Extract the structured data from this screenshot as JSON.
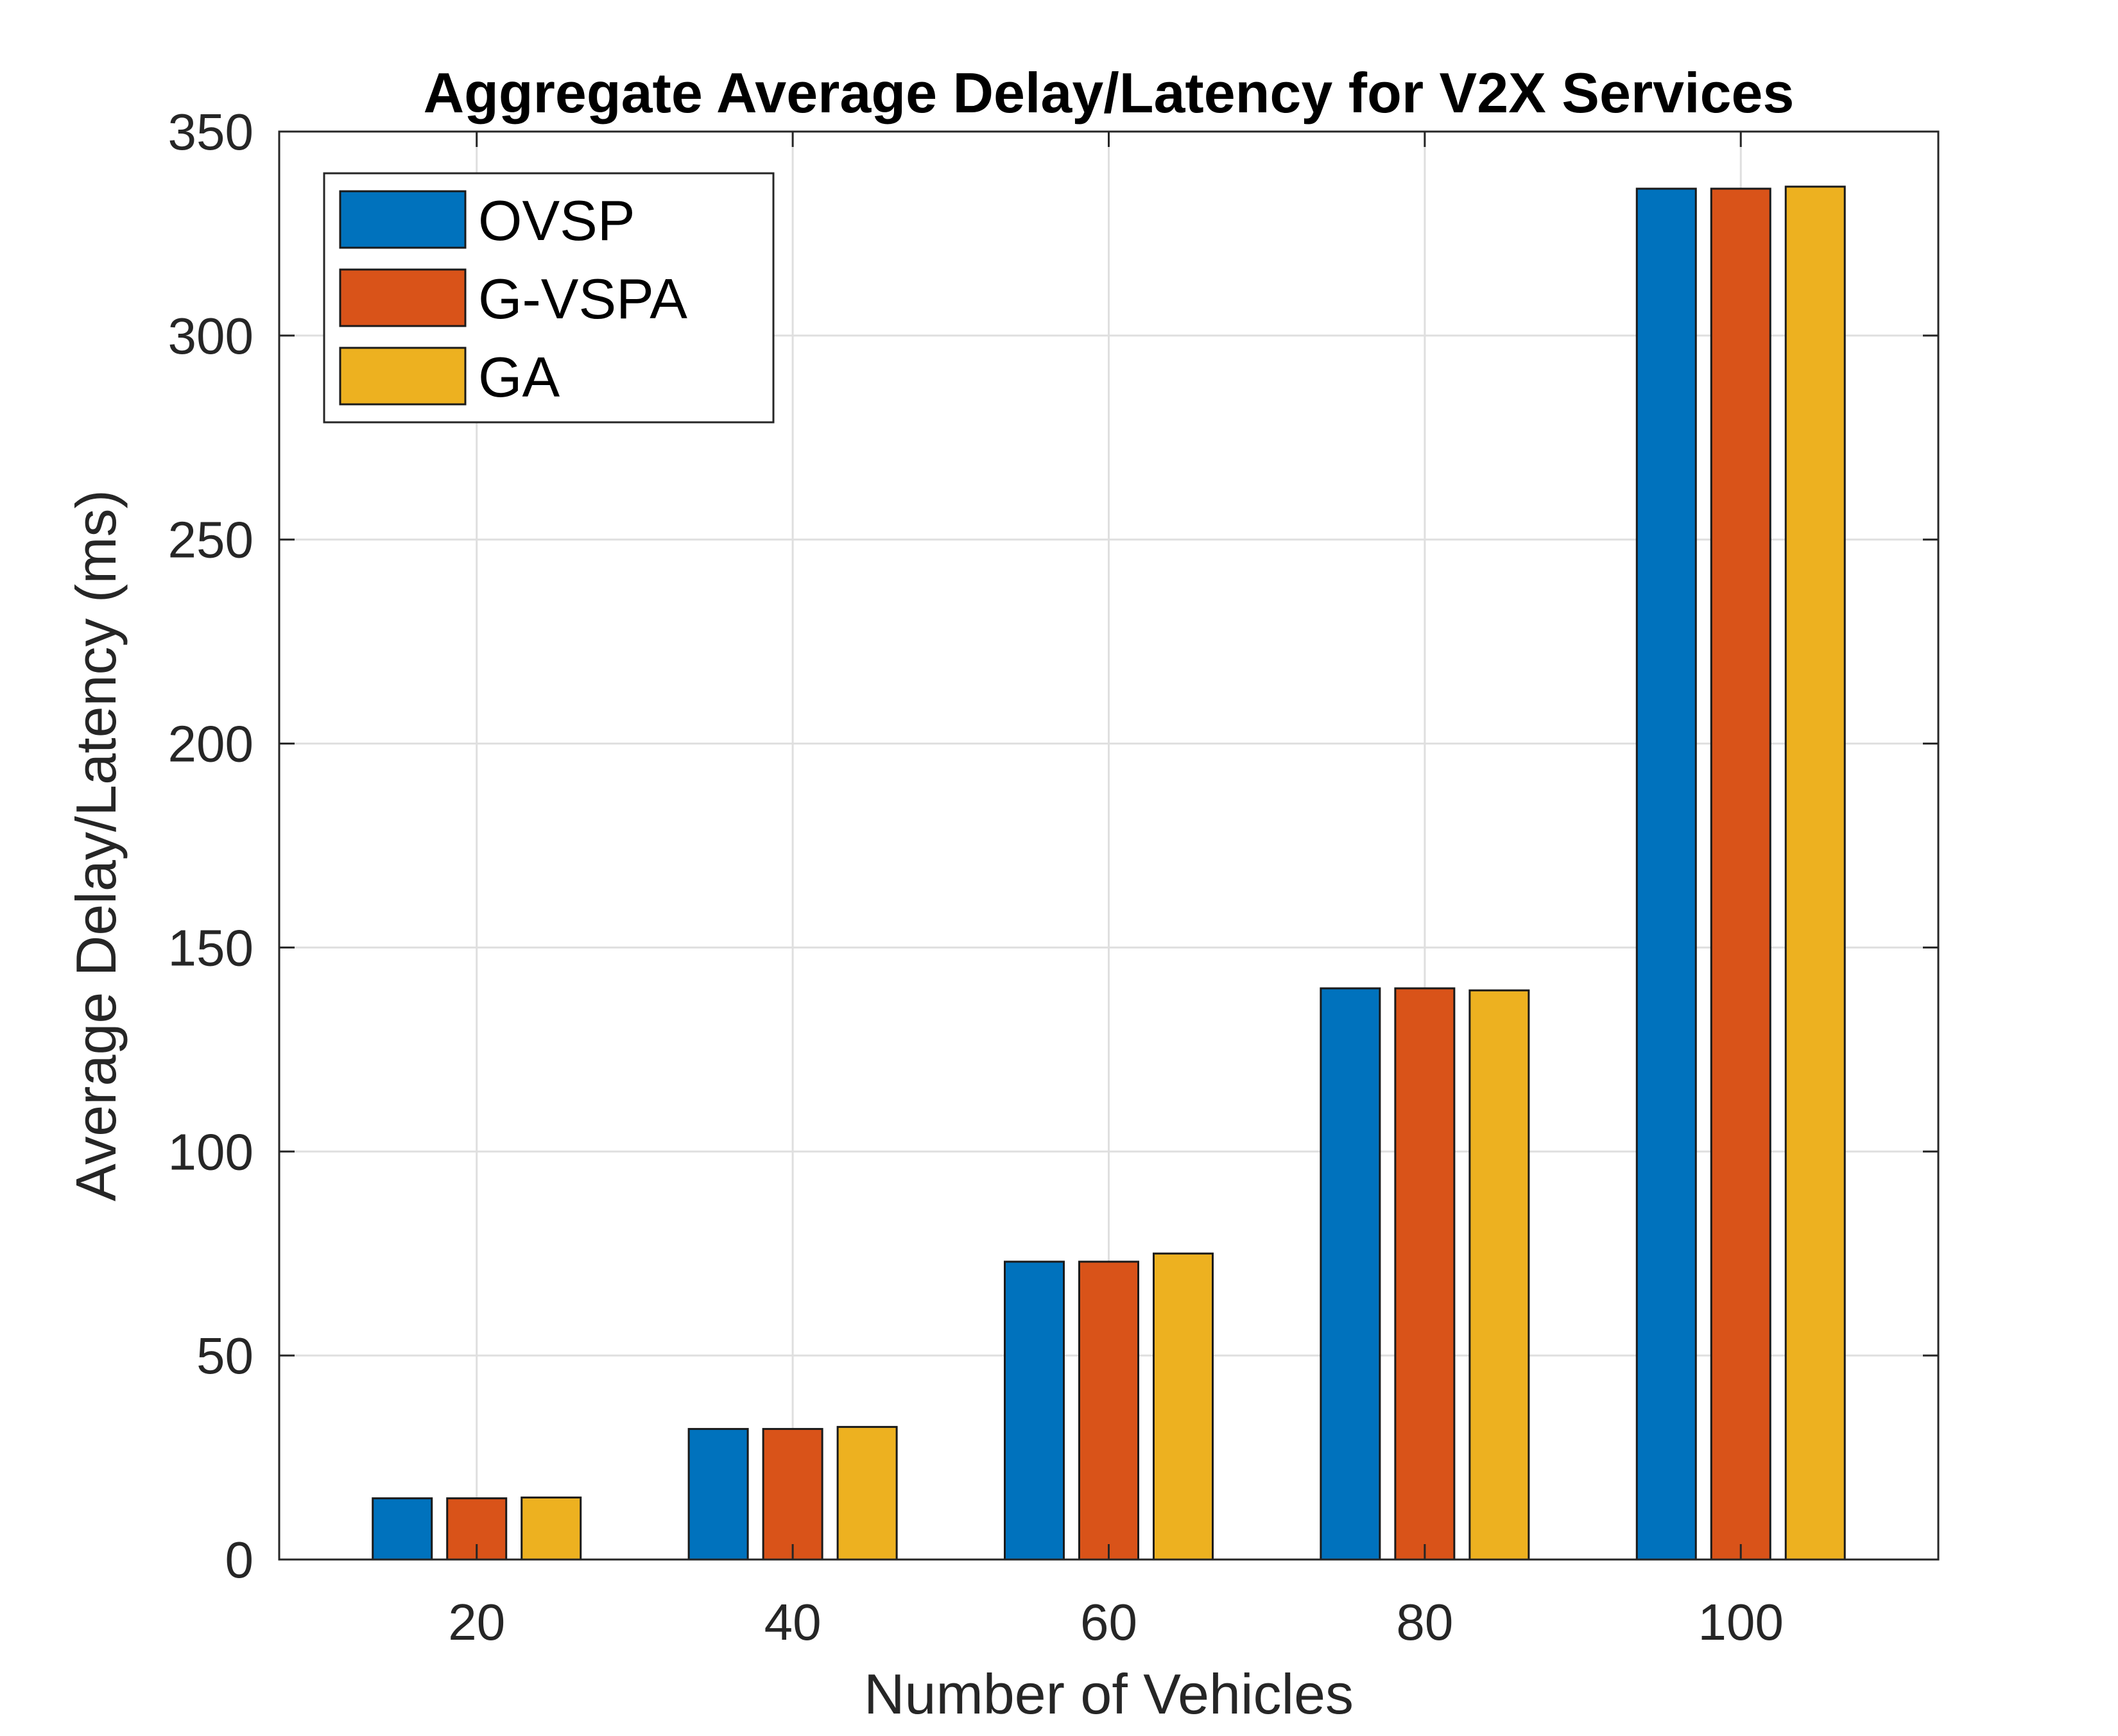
{
  "chart_data": {
    "type": "bar",
    "title": "Aggregate Average Delay/Latency for V2X Services",
    "xlabel": "Number of Vehicles",
    "ylabel": "Average Delay/Latency (ms)",
    "categories": [
      "20",
      "40",
      "60",
      "80",
      "100"
    ],
    "ylim": [
      0,
      350
    ],
    "yticks": [
      0,
      50,
      100,
      150,
      200,
      250,
      300,
      350
    ],
    "grid": true,
    "legend_position": "top-left",
    "series": [
      {
        "name": "OVSP",
        "color": "#0072BD",
        "values": [
          15,
          32,
          73,
          140,
          336
        ]
      },
      {
        "name": "G-VSPA",
        "color": "#D95319",
        "values": [
          15,
          32,
          73,
          140,
          336
        ]
      },
      {
        "name": "GA",
        "color": "#EDB120",
        "values": [
          15.2,
          32.5,
          75,
          139.5,
          336.5
        ]
      }
    ]
  }
}
